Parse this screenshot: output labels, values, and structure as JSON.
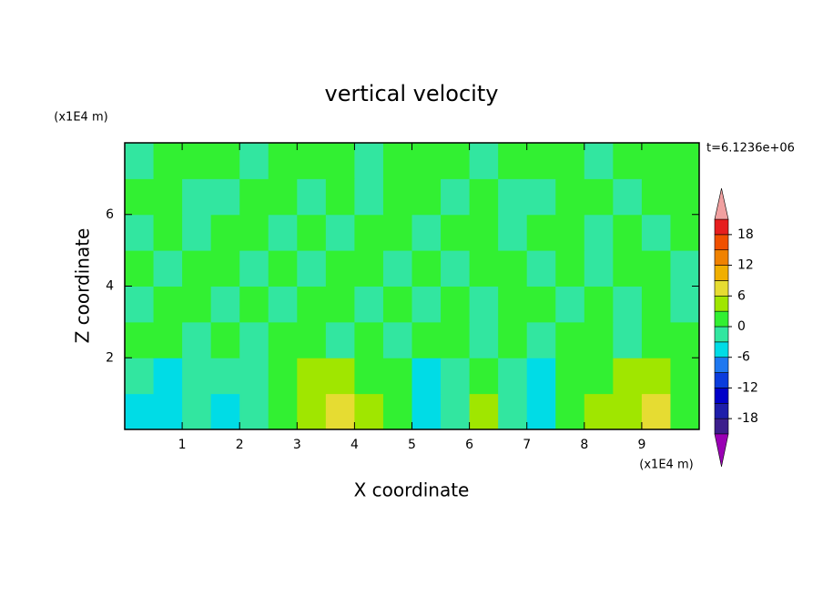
{
  "chart_data": {
    "type": "contour",
    "title": "vertical velocity",
    "x_label": "X coordinate",
    "y_label": "Z coordinate",
    "x_unit_label": "(x1E4 m)",
    "y_unit_label": "(x1E4 m)",
    "time_label": "t=6.1236e+06",
    "xlim": [
      0,
      10
    ],
    "ylim": [
      0,
      8
    ],
    "xticks": [
      1,
      2,
      3,
      4,
      5,
      6,
      7,
      8,
      9
    ],
    "yticks": [
      2,
      4,
      6
    ],
    "x": [
      0.25,
      0.75,
      1.25,
      1.75,
      2.25,
      2.75,
      3.25,
      3.75,
      4.25,
      4.75,
      5.25,
      5.75,
      6.25,
      6.75,
      7.25,
      7.75,
      8.25,
      8.75,
      9.25,
      9.75
    ],
    "y": [
      0.5,
      1.5,
      2.5,
      3.5,
      4.5,
      5.5,
      6.5,
      7.5
    ],
    "z": [
      [
        -4,
        -4,
        -3,
        -4,
        -1,
        1,
        4,
        7,
        4,
        1,
        -4,
        -1,
        4,
        -1,
        -4,
        1,
        4,
        4,
        7,
        1
      ],
      [
        -1,
        -4,
        -1,
        -1,
        -1,
        1,
        4,
        4,
        1,
        1,
        -4,
        -1,
        1,
        -1,
        -4,
        1,
        1,
        4,
        4,
        1
      ],
      [
        1,
        1,
        -1,
        1,
        -1,
        1,
        1,
        -1,
        1,
        -1,
        1,
        1,
        -1,
        1,
        -1,
        1,
        1,
        -1,
        1,
        1
      ],
      [
        -1,
        1,
        1,
        -1,
        1,
        -1,
        1,
        1,
        -1,
        1,
        -1,
        1,
        -1,
        1,
        1,
        -1,
        1,
        -1,
        1,
        -1
      ],
      [
        1,
        -1,
        1,
        1,
        -1,
        1,
        -1,
        1,
        1,
        -1,
        1,
        -1,
        1,
        1,
        -1,
        1,
        -1,
        1,
        1,
        -1
      ],
      [
        -1,
        1,
        -1,
        1,
        1,
        -1,
        1,
        -1,
        1,
        1,
        -1,
        1,
        1,
        -1,
        1,
        1,
        -1,
        1,
        -1,
        1
      ],
      [
        1,
        1,
        -1,
        -1,
        1,
        1,
        -1,
        1,
        -1,
        1,
        1,
        -1,
        1,
        -1,
        -1,
        1,
        1,
        -1,
        1,
        1
      ],
      [
        -1,
        1,
        1,
        1,
        -1,
        1,
        1,
        1,
        -1,
        1,
        1,
        1,
        -1,
        1,
        1,
        1,
        -1,
        1,
        1,
        1
      ]
    ],
    "levels": [
      -21,
      -18,
      -15,
      -12,
      -9,
      -6,
      -3,
      0,
      3,
      6,
      9,
      12,
      15,
      18,
      21
    ],
    "colors": [
      "#9a00b4",
      "#3c1e8c",
      "#1e1eaa",
      "#0000c8",
      "#0a3cdc",
      "#1e78f0",
      "#00dce6",
      "#32e6a0",
      "#32f032",
      "#a0e600",
      "#e6dc32",
      "#f0af00",
      "#f08200",
      "#f05000",
      "#e61e1e",
      "#f0a0a0"
    ],
    "colorbar_ticks": [
      -18,
      -12,
      -6,
      0,
      6,
      12,
      18
    ]
  }
}
